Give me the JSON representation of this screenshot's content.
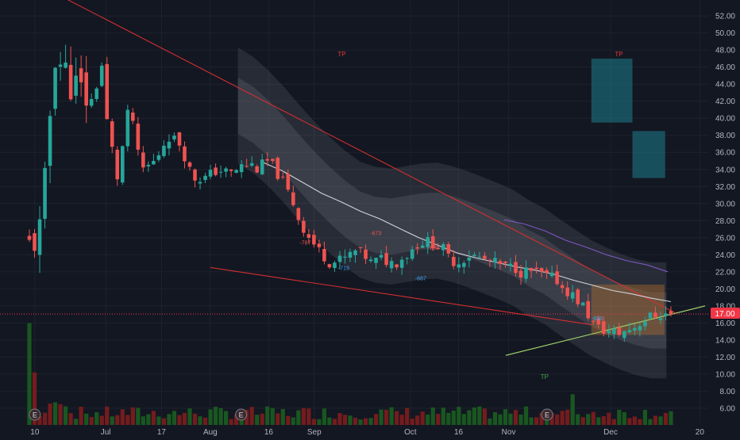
{
  "colors": {
    "background": "#131722",
    "grid": "#1e222d",
    "up": "#26a69a",
    "down": "#ef5350",
    "axis_text": "#b2b5be",
    "current_price_bg": "#f23645",
    "trendline": "#d32f2f",
    "support_line": "#9ccc65",
    "band": "#9598a1",
    "ma_white": "#d1d4dc",
    "ma_purple": "#7e57c2",
    "target_zone": "#1e7d8c",
    "entry_zone": "#b8702c",
    "signal_blue": "#2962ff",
    "volume_up": "#1b5e20",
    "volume_down": "#7f1d1d"
  },
  "chart_data": {
    "type": "candlestick",
    "title": "",
    "y_axis": {
      "ticks": [
        "6.00",
        "8.00",
        "10.00",
        "12.00",
        "14.00",
        "16.00",
        "18.00",
        "20.00",
        "22.00",
        "24.00",
        "26.00",
        "28.00",
        "30.00",
        "32.00",
        "34.00",
        "36.00",
        "38.00",
        "40.00",
        "42.00",
        "44.00",
        "46.00",
        "48.00",
        "50.00",
        "52.00"
      ],
      "range": [
        4.6,
        53.5
      ]
    },
    "x_axis": {
      "ticks": [
        "10",
        "Jul",
        "17",
        "Aug",
        "16",
        "Sep",
        "Oct",
        "16",
        "Nov",
        "Dec",
        "20"
      ]
    },
    "current_price": "17.00",
    "resistance_line": {
      "from": 58.0,
      "to": 17.2
    },
    "lower_channel": {
      "from": 22.5,
      "to": 15.8
    },
    "support_line": {
      "from": 12.2,
      "to": 18.0
    },
    "white_ma": [
      34.8,
      33.8,
      32.5,
      31.2,
      30.2,
      29.1,
      28.2,
      27.1,
      26.0,
      25.1,
      24.2,
      23.6,
      23.1,
      22.6,
      22.2,
      21.7,
      21.0,
      20.4,
      19.8,
      19.4,
      18.9,
      18.5
    ],
    "purple_ma": [
      28.1,
      27.6,
      26.8,
      25.7,
      24.9,
      24.0,
      23.3,
      22.8,
      22.0
    ],
    "band_mid": [
      41.5,
      40.4,
      38.8,
      36.9,
      34.8,
      32.8,
      31.0,
      29.4,
      28.1,
      27.5,
      27.3,
      27.6,
      27.9,
      28.0,
      27.6,
      27.0,
      26.3,
      25.6,
      24.8,
      23.6,
      22.7,
      21.4,
      20.2,
      19.0,
      18.1,
      17.3,
      16.7,
      16.3,
      16.3
    ],
    "band_inner_halfwidth": 3.3,
    "band_outer_halfwidth": 6.8,
    "volume_tall_bar": 0.93,
    "candle_segments": [
      [
        25.0,
        27.0,
        48.0,
        45.0
      ],
      [
        45.0,
        43.0,
        42.0,
        47.5
      ],
      [
        41.0,
        33.0,
        42.0,
        32.0
      ],
      [
        34.0,
        35.0,
        38.0,
        37.0
      ],
      [
        37.0,
        33.0,
        33.0,
        34.0
      ],
      [
        34.0,
        33.5,
        34.5,
        34.5
      ],
      [
        34.0,
        35.0,
        33.0,
        30.0
      ],
      [
        29.5,
        26.5,
        24.5,
        23.0
      ],
      [
        23.0,
        23.5,
        24.5,
        23.5
      ],
      [
        23.0,
        23.5,
        23.0,
        24.0
      ],
      [
        24.0,
        25.5,
        25.5,
        24.5
      ],
      [
        24.0,
        23.0,
        24.0,
        23.5
      ],
      [
        23.5,
        23.0,
        22.5,
        22.5
      ],
      [
        22.0,
        22.0,
        21.5,
        21.0
      ],
      [
        20.5,
        19.5,
        18.0,
        15.5
      ],
      [
        15.5,
        15.0,
        14.8,
        15.5
      ],
      [
        15.5,
        16.5,
        17.0,
        17.0
      ]
    ],
    "candle_count": 125,
    "markers": {
      "tp_up": [
        "TP",
        "TP"
      ],
      "tp_down": [
        "TP"
      ],
      "signals_red": [
        "-787",
        "-673",
        "-690"
      ],
      "signals_blue": [
        "-719",
        "-687",
        "-696"
      ]
    },
    "earnings_label": "E",
    "target_zone": {
      "from": 39.5,
      "to": 47.0,
      "step_to": 38.5,
      "lower_to": 33.0
    },
    "entry_zone": {
      "from": 14.6,
      "to": 20.5
    }
  }
}
